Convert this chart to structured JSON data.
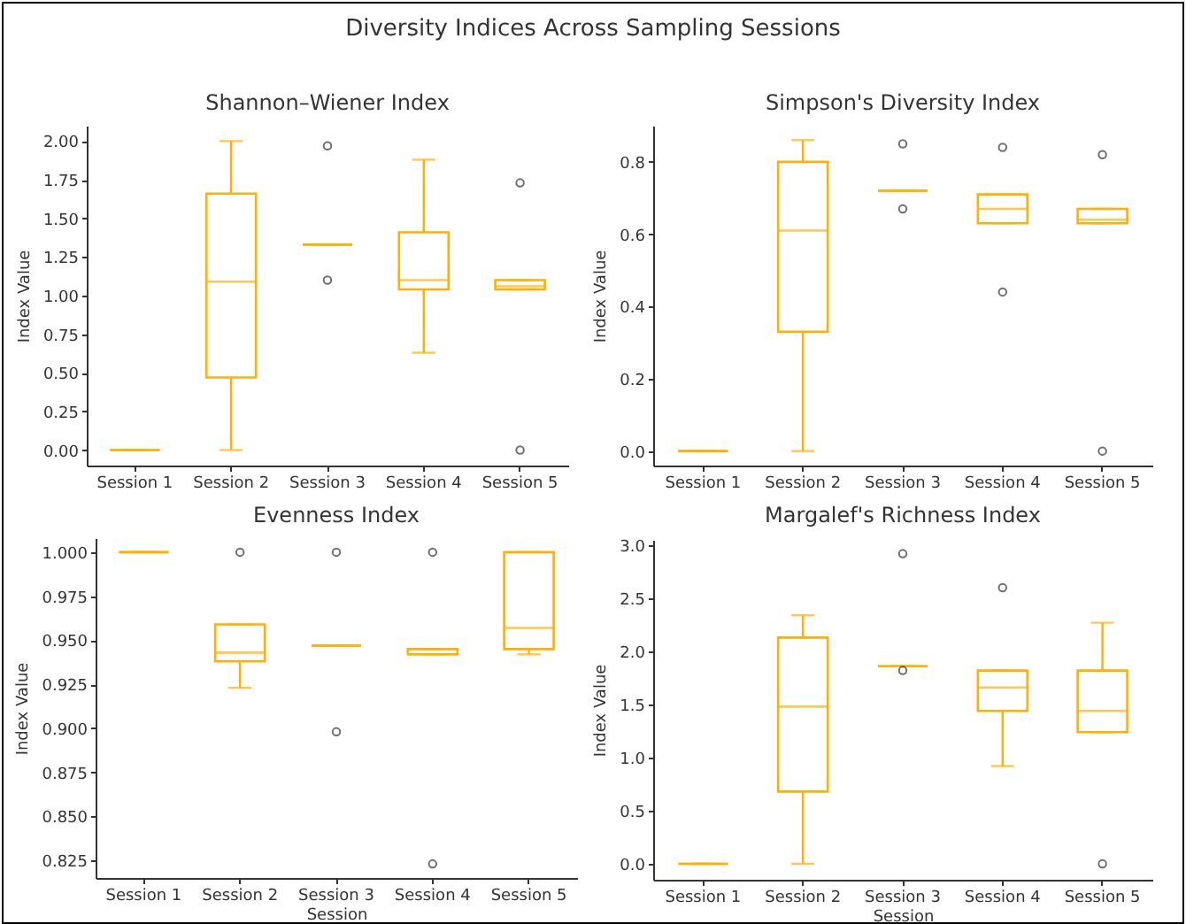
{
  "chart_data": [
    {
      "type": "box",
      "title": "Shannon–Wiener Index",
      "ylabel": "Index Value",
      "annotations": [
        "Diversity Indices Across Sampling Sessions"
      ],
      "categories": [
        "Session 1",
        "Session 2",
        "Session 3",
        "Session 4",
        "Session 5"
      ],
      "ylim": [
        -0.1,
        2.1
      ],
      "yticks": [
        {
          "value": 0,
          "label": "0.00"
        },
        {
          "value": 0.25,
          "label": "0.25"
        },
        {
          "value": 0.5,
          "label": "0.50"
        },
        {
          "value": 0.75,
          "label": "0.75"
        },
        {
          "value": 1,
          "label": "1.00"
        },
        {
          "value": 1.25,
          "label": "1.25"
        },
        {
          "value": 1.5,
          "label": "1.50"
        },
        {
          "value": 1.75,
          "label": "1.75"
        },
        {
          "value": 2,
          "label": "2.00"
        }
      ],
      "grid": false,
      "series": [
        {
          "color": "#ffb000",
          "boxes": [
            {
              "low": 0,
              "q1": 0,
              "median": 0,
              "q3": 0,
              "high": 0
            },
            {
              "low": 0,
              "q1": 0.47,
              "median": 1.09,
              "q3": 1.66,
              "high": 2.0
            },
            {
              "low": 1.33,
              "q1": 1.33,
              "median": 1.33,
              "q3": 1.33,
              "high": 1.33,
              "outliers": [
                1.97,
                1.1
              ]
            },
            {
              "low": 0.63,
              "q1": 1.04,
              "median": 1.1,
              "q3": 1.41,
              "high": 1.88
            },
            {
              "low": 1.04,
              "q1": 1.04,
              "median": 1.06,
              "q3": 1.1,
              "high": 1.1,
              "outliers": [
                1.73,
                0
              ]
            }
          ]
        }
      ]
    },
    {
      "type": "box",
      "title": "Simpson's Diversity Index",
      "ylabel": "Index Value",
      "categories": [
        "Session 1",
        "Session 2",
        "Session 3",
        "Session 4",
        "Session 5"
      ],
      "ylim": [
        -0.04,
        0.9
      ],
      "yticks": [
        {
          "value": 0,
          "label": "0.0"
        },
        {
          "value": 0.2,
          "label": "0.2"
        },
        {
          "value": 0.4,
          "label": "0.4"
        },
        {
          "value": 0.6,
          "label": "0.6"
        },
        {
          "value": 0.8,
          "label": "0.8"
        }
      ],
      "grid": false,
      "series": [
        {
          "color": "#ffb000",
          "boxes": [
            {
              "low": 0,
              "q1": 0,
              "median": 0,
              "q3": 0,
              "high": 0
            },
            {
              "low": 0,
              "q1": 0.33,
              "median": 0.61,
              "q3": 0.8,
              "high": 0.86
            },
            {
              "low": 0.72,
              "q1": 0.72,
              "median": 0.72,
              "q3": 0.72,
              "high": 0.72,
              "outliers": [
                0.85,
                0.67
              ]
            },
            {
              "low": 0.63,
              "q1": 0.63,
              "median": 0.67,
              "q3": 0.71,
              "high": 0.71,
              "outliers": [
                0.84,
                0.44
              ]
            },
            {
              "low": 0.63,
              "q1": 0.63,
              "median": 0.64,
              "q3": 0.67,
              "high": 0.67,
              "outliers": [
                0.82,
                0
              ]
            }
          ]
        }
      ]
    },
    {
      "type": "box",
      "title": "Evenness Index",
      "xlabel": "Session",
      "ylabel": "Index Value",
      "categories": [
        "Session 1",
        "Session 2",
        "Session 3",
        "Session 4",
        "Session 5"
      ],
      "ylim": [
        0.815,
        1.008
      ],
      "yticks": [
        {
          "value": 0.825,
          "label": "0.825"
        },
        {
          "value": 0.85,
          "label": "0.850"
        },
        {
          "value": 0.875,
          "label": "0.875"
        },
        {
          "value": 0.9,
          "label": "0.900"
        },
        {
          "value": 0.925,
          "label": "0.925"
        },
        {
          "value": 0.95,
          "label": "0.950"
        },
        {
          "value": 0.975,
          "label": "0.975"
        },
        {
          "value": 1,
          "label": "1.000"
        }
      ],
      "grid": false,
      "series": [
        {
          "color": "#ffb000",
          "boxes": [
            {
              "low": 1,
              "q1": 1,
              "median": 1,
              "q3": 1,
              "high": 1
            },
            {
              "low": 0.923,
              "q1": 0.938,
              "median": 0.943,
              "q3": 0.959,
              "high": 0.959,
              "outliers": [
                1
              ]
            },
            {
              "low": 0.947,
              "q1": 0.947,
              "median": 0.947,
              "q3": 0.947,
              "high": 0.947,
              "outliers": [
                1,
                0.898
              ]
            },
            {
              "low": 0.942,
              "q1": 0.942,
              "median": 0.942,
              "q3": 0.945,
              "high": 0.945,
              "outliers": [
                1,
                0.823
              ]
            },
            {
              "low": 0.942,
              "q1": 0.945,
              "median": 0.957,
              "q3": 1,
              "high": 1
            }
          ]
        }
      ]
    },
    {
      "type": "box",
      "title": "Margalef's Richness Index",
      "xlabel": "Session",
      "ylabel": "Index Value",
      "categories": [
        "Session 1",
        "Session 2",
        "Session 3",
        "Session 4",
        "Session 5"
      ],
      "ylim": [
        -0.15,
        3.05
      ],
      "yticks": [
        {
          "value": 0,
          "label": "0.0"
        },
        {
          "value": 0.5,
          "label": "0.5"
        },
        {
          "value": 1,
          "label": "1.0"
        },
        {
          "value": 1.5,
          "label": "1.5"
        },
        {
          "value": 2,
          "label": "2.0"
        },
        {
          "value": 2.5,
          "label": "2.5"
        },
        {
          "value": 3,
          "label": "3.0"
        }
      ],
      "grid": false,
      "series": [
        {
          "color": "#ffb000",
          "boxes": [
            {
              "low": 0,
              "q1": 0,
              "median": 0,
              "q3": 0,
              "high": 0
            },
            {
              "low": 0,
              "q1": 0.68,
              "median": 1.48,
              "q3": 2.13,
              "high": 2.34
            },
            {
              "low": 1.86,
              "q1": 1.86,
              "median": 1.86,
              "q3": 1.86,
              "high": 1.86,
              "outliers": [
                2.92,
                1.82
              ]
            },
            {
              "low": 0.92,
              "q1": 1.44,
              "median": 1.66,
              "q3": 1.82,
              "high": 1.82,
              "outliers": [
                2.6
              ]
            },
            {
              "low": 1.24,
              "q1": 1.24,
              "median": 1.44,
              "q3": 1.82,
              "high": 2.27,
              "outliers": [
                0
              ]
            }
          ]
        }
      ]
    }
  ]
}
